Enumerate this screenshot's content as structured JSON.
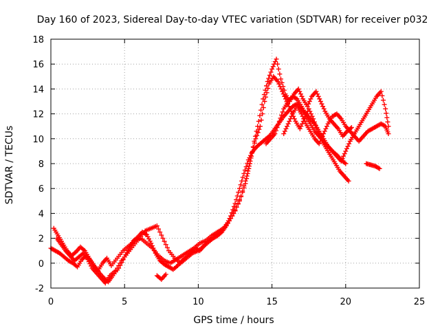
{
  "chart_data": {
    "type": "scatter",
    "title": "Day 160 of 2023, Sidereal Day-to-day VTEC variation (SDTVAR) for receiver p032",
    "xlabel": "GPS time / hours",
    "ylabel": "SDTVAR / TECUs",
    "xlim": [
      0,
      25
    ],
    "ylim": [
      -2,
      18
    ],
    "x_ticks": [
      0,
      5,
      10,
      15,
      20,
      25
    ],
    "y_ticks": [
      -2,
      0,
      2,
      4,
      6,
      8,
      10,
      12,
      14,
      16,
      18
    ],
    "grid": true,
    "marker": "+",
    "color": "#ff0000",
    "series": [
      {
        "name": "track-1",
        "x": [
          0.0,
          0.3,
          0.6,
          0.9,
          1.2,
          1.5,
          1.8,
          2.1,
          2.4,
          2.7,
          3.0,
          3.3,
          3.6,
          3.9,
          4.2,
          4.6,
          5.0,
          5.3,
          5.6,
          5.9,
          6.2,
          6.5,
          6.8,
          7.1,
          7.4,
          7.7,
          8.0,
          8.3,
          8.6,
          8.9,
          9.2,
          9.5,
          9.8,
          10.1,
          10.4,
          10.7,
          11.0,
          11.3,
          11.6,
          11.9,
          12.2,
          12.5,
          12.8,
          13.1,
          13.4,
          13.7,
          14.0,
          14.3,
          14.6,
          14.9,
          15.2,
          15.5,
          15.8,
          16.1,
          16.4,
          16.7,
          17.0,
          17.3,
          17.6,
          17.9,
          18.2,
          18.5,
          18.8,
          19.1,
          19.4,
          19.7,
          20.0
        ],
        "y": [
          1.2,
          1.0,
          0.8,
          0.5,
          0.2,
          0.0,
          -0.3,
          0.3,
          0.6,
          0.2,
          -0.3,
          -0.8,
          -1.2,
          -1.5,
          -1.0,
          -0.4,
          0.5,
          1.2,
          1.8,
          2.1,
          2.5,
          2.3,
          1.6,
          0.8,
          0.2,
          -0.1,
          -0.3,
          -0.5,
          -0.2,
          0.2,
          0.5,
          0.8,
          1.2,
          1.0,
          1.4,
          1.8,
          2.0,
          2.2,
          2.5,
          3.0,
          3.8,
          4.8,
          6.0,
          7.2,
          8.3,
          9.0,
          9.4,
          9.7,
          10.0,
          10.3,
          10.8,
          11.3,
          11.8,
          12.2,
          12.6,
          12.8,
          12.4,
          11.8,
          11.2,
          10.6,
          10.2,
          9.8,
          9.4,
          9.0,
          8.7,
          8.3,
          8.0
        ]
      },
      {
        "name": "track-2",
        "x": [
          0.2,
          0.5,
          0.8,
          1.1,
          1.4,
          1.7,
          2.0,
          2.3,
          2.6,
          2.9,
          3.2,
          3.5,
          3.8,
          4.1,
          4.5,
          4.9,
          5.3,
          5.7,
          6.1,
          6.5,
          6.9,
          7.3,
          7.7,
          8.1,
          8.5,
          8.9,
          9.3,
          9.7,
          10.1,
          10.5,
          10.9,
          11.3,
          11.7,
          12.1,
          12.5,
          12.9,
          13.3,
          13.6,
          13.9,
          14.2,
          14.5,
          14.8,
          15.1,
          15.4,
          15.7,
          16.0,
          16.3,
          16.6,
          16.9,
          17.2,
          17.5,
          17.8,
          18.1,
          18.4,
          18.7,
          19.0,
          19.3,
          19.6,
          19.9,
          20.2
        ],
        "y": [
          2.8,
          2.2,
          1.6,
          1.0,
          0.6,
          0.9,
          1.3,
          1.0,
          0.4,
          -0.2,
          -0.6,
          0.0,
          0.4,
          -0.2,
          0.4,
          1.0,
          1.4,
          1.8,
          2.0,
          1.6,
          1.2,
          0.6,
          0.2,
          0.0,
          0.3,
          0.6,
          0.9,
          1.2,
          1.6,
          1.8,
          2.2,
          2.5,
          2.8,
          3.4,
          4.2,
          5.4,
          7.0,
          8.6,
          10.0,
          11.0,
          13.0,
          14.4,
          15.0,
          14.6,
          13.8,
          13.0,
          12.2,
          11.4,
          10.8,
          11.6,
          12.4,
          11.6,
          10.6,
          9.8,
          9.2,
          8.6,
          8.0,
          7.4,
          7.0,
          6.6
        ]
      },
      {
        "name": "track-3",
        "x": [
          0.4,
          0.7,
          1.0,
          1.3,
          1.6,
          1.9,
          2.2,
          2.5,
          2.8,
          3.1,
          3.4,
          3.7,
          4.0,
          4.4,
          4.8,
          5.2,
          5.6,
          6.0,
          6.4,
          6.8,
          7.2,
          7.6,
          8.0,
          8.4,
          8.8,
          9.2,
          9.6,
          10.0,
          10.4,
          10.8,
          11.2,
          11.6,
          12.0,
          12.4,
          12.8,
          13.2,
          13.5,
          13.8,
          14.1,
          14.4,
          14.7,
          15.0,
          15.3,
          15.6,
          15.9,
          16.2,
          16.5,
          16.8,
          17.1,
          17.4,
          17.7,
          18.0,
          18.3,
          18.6,
          18.9,
          19.2,
          19.5,
          19.8,
          20.1,
          20.4
        ],
        "y": [
          2.0,
          1.5,
          1.0,
          0.6,
          0.2,
          0.5,
          0.8,
          0.3,
          -0.4,
          -0.8,
          -1.2,
          -1.6,
          -1.0,
          -0.6,
          0.2,
          0.8,
          1.4,
          2.0,
          2.6,
          2.8,
          3.0,
          2.0,
          1.0,
          0.4,
          0.0,
          0.4,
          0.8,
          1.0,
          1.4,
          1.8,
          2.2,
          2.6,
          3.2,
          4.0,
          5.0,
          6.4,
          8.0,
          9.8,
          11.4,
          13.2,
          14.6,
          15.6,
          16.4,
          14.8,
          13.6,
          13.0,
          13.6,
          14.0,
          13.2,
          12.6,
          13.4,
          13.8,
          13.0,
          12.2,
          11.6,
          11.2,
          10.8,
          10.2,
          10.6,
          10.9
        ]
      },
      {
        "name": "track-4",
        "x": [
          15.8,
          16.1,
          16.4,
          16.7,
          17.0,
          17.3,
          17.6,
          17.9,
          18.2,
          18.5,
          18.8,
          19.1,
          19.4,
          19.7,
          20.0,
          20.3,
          20.6,
          20.9,
          21.2,
          21.5,
          21.8,
          22.1,
          22.4,
          22.7,
          22.9
        ],
        "y": [
          10.4,
          11.2,
          12.0,
          12.6,
          12.0,
          11.2,
          10.6,
          10.0,
          9.6,
          10.4,
          11.2,
          11.8,
          12.0,
          11.6,
          11.0,
          10.6,
          10.2,
          9.8,
          10.2,
          10.6,
          10.8,
          11.0,
          11.2,
          11.0,
          10.4
        ]
      },
      {
        "name": "track-5",
        "x": [
          14.6,
          14.9,
          15.2,
          15.5,
          15.8,
          16.1,
          16.4,
          16.7,
          17.0,
          17.3,
          17.6,
          17.9,
          18.2,
          18.5,
          18.8,
          19.1,
          19.4,
          19.7,
          20.0,
          20.3,
          20.6,
          20.9,
          21.2,
          21.5,
          21.8,
          22.1,
          22.4,
          22.7,
          22.9
        ],
        "y": [
          9.6,
          10.0,
          10.4,
          11.4,
          12.4,
          13.0,
          13.4,
          13.2,
          12.6,
          12.0,
          11.6,
          11.2,
          10.6,
          10.0,
          9.4,
          9.0,
          8.6,
          8.2,
          9.0,
          9.8,
          10.4,
          11.0,
          11.6,
          12.2,
          12.8,
          13.4,
          13.8,
          12.4,
          11.0
        ]
      },
      {
        "name": "track-6",
        "x": [
          7.2,
          7.5,
          7.8,
          21.4,
          21.7,
          22.0,
          22.3
        ],
        "y": [
          -1.0,
          -1.3,
          -0.9,
          8.0,
          7.9,
          7.8,
          7.6
        ]
      }
    ]
  }
}
